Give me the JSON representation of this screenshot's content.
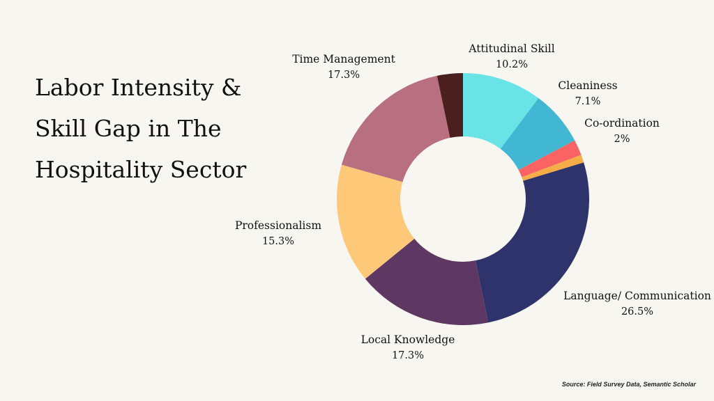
{
  "title": "Labor Intensity & Skill Gap in The Hospitality Sector",
  "source": "Source: Field Survey Data, Semantic Scholar",
  "chart_data": {
    "type": "pie",
    "hole": true,
    "categories": [
      "Attitudinal Skill",
      "Cleaniness",
      "Co-ordination",
      "",
      "Language/ Communication",
      "Local Knowledge",
      "Professionalism",
      "Time Management",
      ""
    ],
    "values": [
      10.2,
      7.1,
      2,
      1,
      26.5,
      17.3,
      15.3,
      17.3,
      3.3
    ],
    "value_labels": [
      "10.2%",
      "7.1%",
      "2%",
      "",
      "26.5%",
      "17.3%",
      "15.3%",
      "17.3%",
      ""
    ],
    "colors": [
      "#6ae3e6",
      "#42b7d4",
      "#fa6363",
      "#f6ad48",
      "#2f336b",
      "#5e3763",
      "#fdc978",
      "#b87080",
      "#4a1f1e"
    ]
  }
}
